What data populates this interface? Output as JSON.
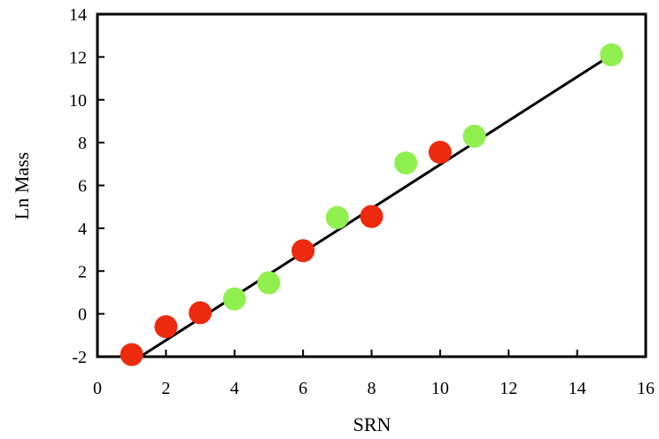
{
  "chart_data": {
    "type": "scatter",
    "title": "",
    "xlabel": "SRN",
    "ylabel": "Ln Mass",
    "xlim": [
      0,
      16
    ],
    "ylim": [
      -2,
      14
    ],
    "xticks": [
      0,
      2,
      4,
      6,
      8,
      10,
      12,
      14,
      16
    ],
    "yticks": [
      -2,
      0,
      2,
      4,
      6,
      8,
      10,
      12,
      14
    ],
    "grid": false,
    "legend": "none",
    "colors": {
      "red": "#ee2a0e",
      "green": "#8fef4f",
      "line": "#000000"
    },
    "series": [
      {
        "color_key": "red",
        "x": [
          1,
          2,
          3,
          6,
          8,
          10
        ],
        "y": [
          -1.9,
          -0.6,
          0.05,
          2.95,
          4.55,
          7.55
        ]
      },
      {
        "color_key": "green",
        "x": [
          4,
          5,
          7,
          9,
          11,
          15
        ],
        "y": [
          0.7,
          1.45,
          4.5,
          7.05,
          8.3,
          12.1
        ]
      }
    ],
    "trendline": {
      "x": [
        1.3,
        15
      ],
      "y": [
        -1.95,
        12.1
      ]
    }
  }
}
